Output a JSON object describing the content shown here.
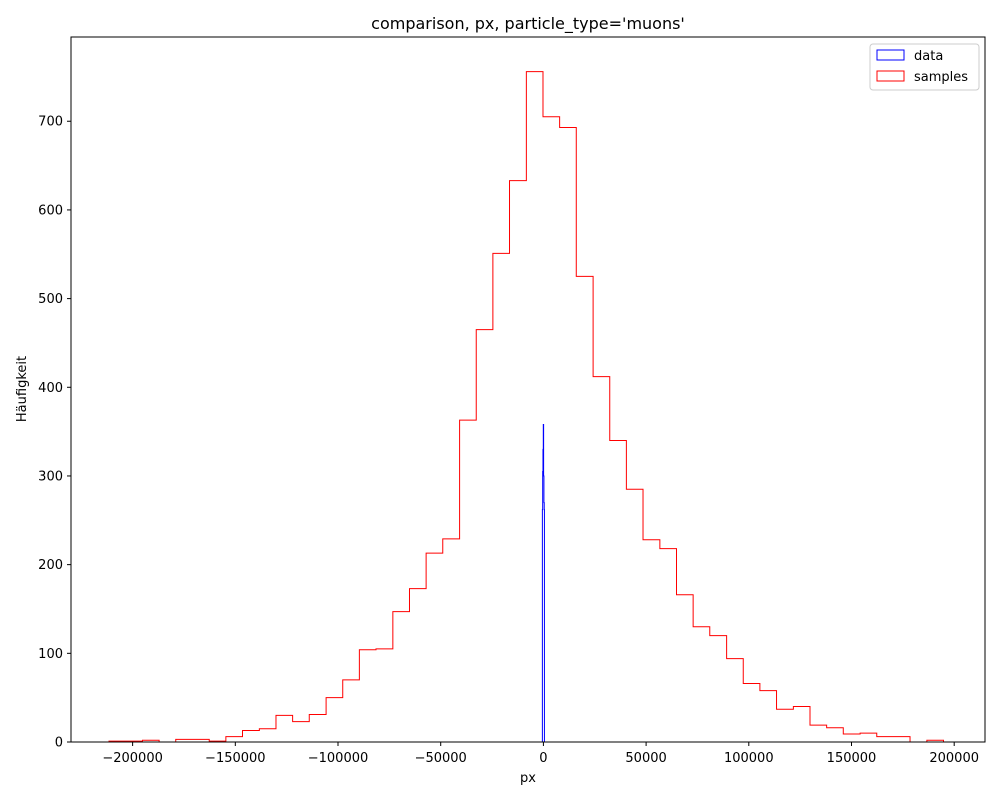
{
  "chart_data": {
    "type": "histogram",
    "title": "comparison, px, particle_type='muons'",
    "xlabel": "px",
    "ylabel": "Häufigkeit",
    "xlim": [
      -230000,
      215000
    ],
    "ylim": [
      0,
      795
    ],
    "x_ticks": [
      -200000,
      -150000,
      -100000,
      -50000,
      0,
      50000,
      100000,
      150000,
      200000
    ],
    "x_tick_labels": [
      "−200000",
      "−150000",
      "−100000",
      "−50000",
      "0",
      "50000",
      "100000",
      "150000",
      "200000"
    ],
    "y_ticks": [
      0,
      100,
      200,
      300,
      400,
      500,
      600,
      700
    ],
    "y_tick_labels": [
      "0",
      "100",
      "200",
      "300",
      "400",
      "500",
      "600",
      "700"
    ],
    "legend": {
      "position": "top-right",
      "entries": [
        "data",
        "samples"
      ]
    },
    "series": [
      {
        "name": "data",
        "color": "#0000ff",
        "style": "step-outline",
        "bin_edges": [
          -500,
          -350,
          -200,
          -50,
          100,
          250,
          400,
          500
        ],
        "counts": [
          262,
          305,
          330,
          358,
          300,
          270,
          262
        ]
      },
      {
        "name": "samples",
        "color": "#ff0000",
        "style": "step-outline",
        "bin_edges": [
          -211500,
          -203300,
          -195200,
          -187100,
          -179000,
          -170800,
          -162700,
          -154600,
          -146500,
          -138300,
          -130200,
          -122100,
          -114000,
          -105800,
          -97700,
          -89600,
          -81500,
          -73300,
          -65200,
          -57100,
          -49000,
          -40800,
          -32700,
          -24600,
          -16500,
          -8300,
          -200,
          7900,
          16000,
          24200,
          32300,
          40400,
          48500,
          56700,
          64800,
          72900,
          81000,
          89200,
          97300,
          105400,
          113500,
          121700,
          129800,
          137900,
          146000,
          154200,
          162300,
          170400,
          178500,
          186700,
          194800
        ],
        "counts": [
          1,
          1,
          2,
          0,
          3,
          3,
          1,
          6,
          13,
          15,
          30,
          23,
          31,
          50,
          70,
          104,
          105,
          147,
          173,
          213,
          229,
          363,
          465,
          551,
          633,
          756,
          705,
          693,
          525,
          412,
          340,
          285,
          228,
          218,
          166,
          130,
          120,
          94,
          66,
          58,
          37,
          40,
          19,
          16,
          9,
          10,
          6,
          6,
          0,
          2
        ]
      }
    ]
  }
}
